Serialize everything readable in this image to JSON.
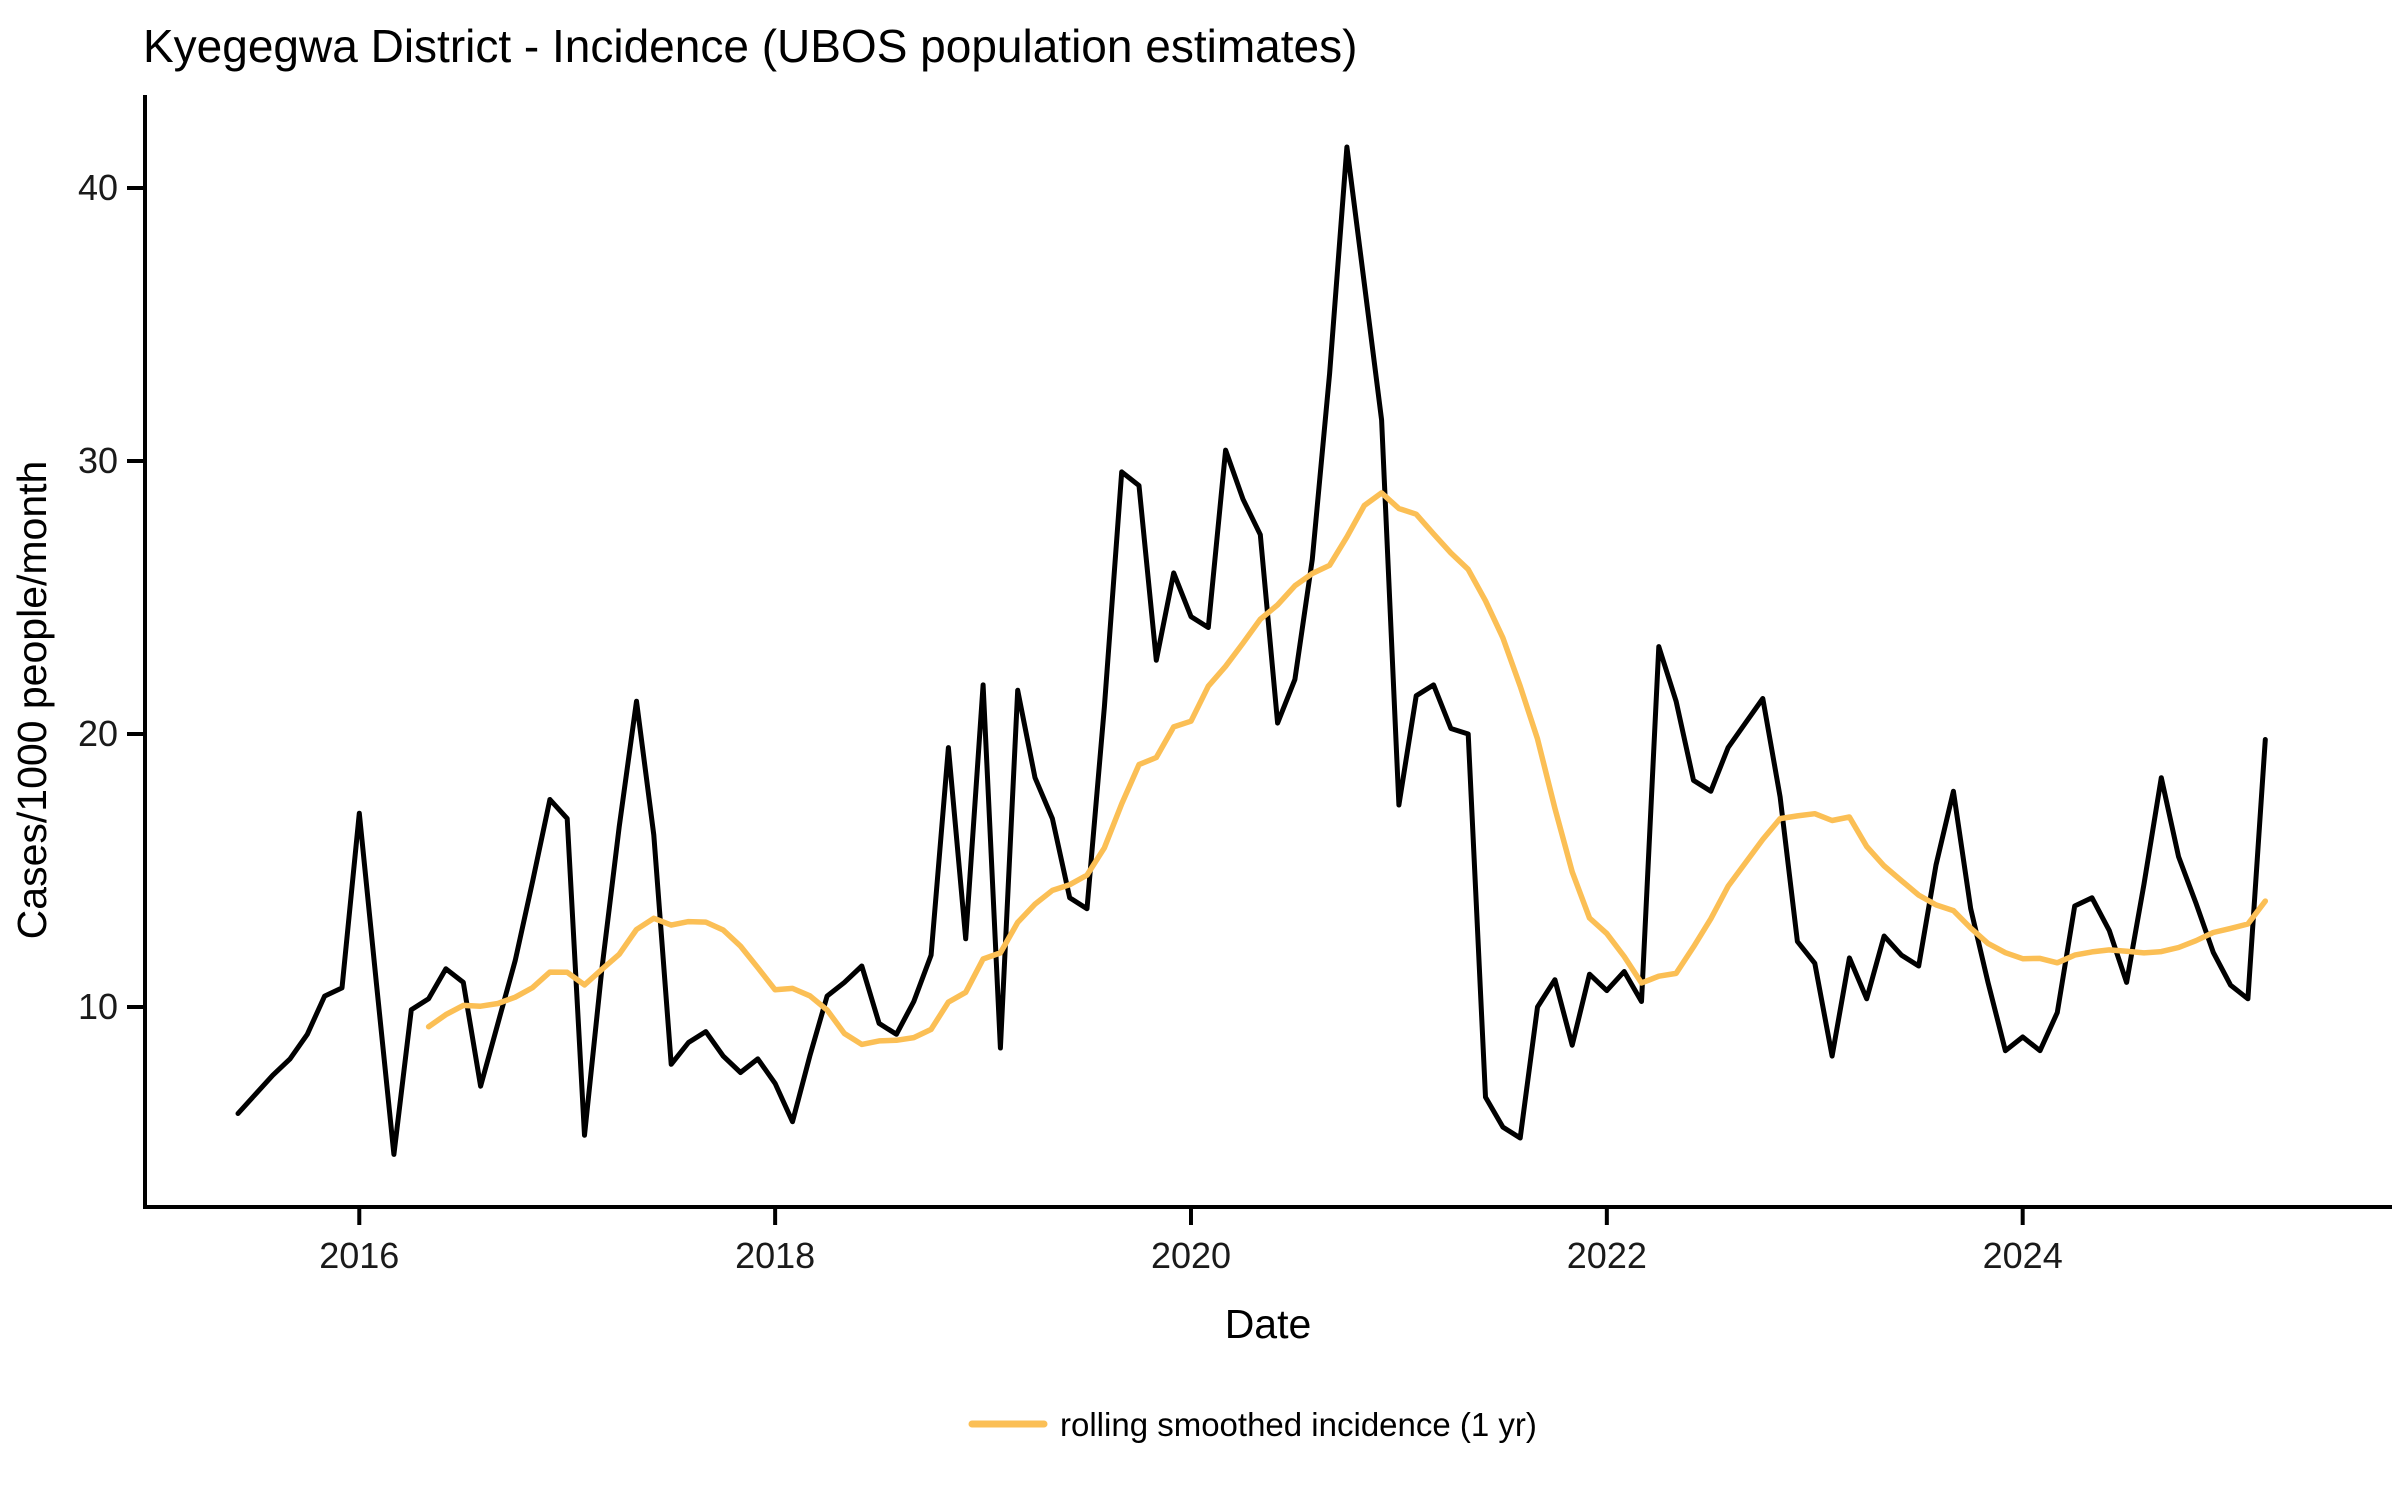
{
  "title": "Kyegegwa District - Incidence (UBOS population estimates)",
  "axes": {
    "x_label": "Date",
    "y_label": "Cases/1000 people/month",
    "x_tick_years": [
      2016,
      2018,
      2020,
      2022,
      2024
    ],
    "y_tick_values": [
      10,
      20,
      30,
      40
    ]
  },
  "legend": {
    "smoothed_label": "rolling smoothed incidence (1 yr)"
  },
  "colors": {
    "raw_line": "#000000",
    "smoothed_line": "#FBBF55",
    "axis": "#000000",
    "text": "#1a1a1a",
    "background": "#ffffff"
  },
  "chart_data": {
    "type": "line",
    "title": "Kyegegwa District - Incidence (UBOS population estimates)",
    "xlabel": "Date",
    "ylabel": "Cases/1000 people/month",
    "grid": false,
    "legend_position": "bottom-center",
    "x_start_month": "2015-06",
    "x_end_month": "2025-03",
    "frequency": "monthly",
    "x_axis_tick_years": [
      2016,
      2018,
      2020,
      2022,
      2024
    ],
    "ylim_drawn": [
      2.7,
      43.4
    ],
    "series": [
      {
        "name": "incidence",
        "style": "raw monthly line",
        "color": "#000000",
        "start_month": "2015-06",
        "values": [
          6.1,
          6.8,
          7.5,
          8.1,
          9.0,
          10.4,
          10.7,
          17.1,
          10.8,
          4.6,
          9.9,
          10.3,
          11.4,
          10.9,
          7.1,
          9.4,
          11.7,
          14.6,
          17.6,
          16.9,
          5.3,
          11.4,
          16.6,
          21.2,
          16.3,
          7.9,
          8.7,
          9.1,
          8.2,
          7.6,
          8.1,
          7.2,
          5.8,
          8.2,
          10.4,
          10.9,
          11.5,
          9.4,
          9.0,
          10.2,
          11.9,
          19.5,
          12.5,
          21.8,
          8.5,
          21.6,
          18.4,
          16.9,
          14.0,
          13.6,
          21.0,
          29.6,
          29.1,
          22.7,
          25.9,
          24.3,
          23.9,
          30.4,
          28.6,
          27.3,
          20.4,
          22.0,
          26.4,
          33.2,
          41.5,
          36.5,
          31.5,
          17.4,
          21.4,
          21.8,
          20.2,
          20.0,
          6.7,
          5.6,
          5.2,
          10.0,
          11.0,
          8.6,
          11.2,
          10.6,
          11.3,
          10.2,
          23.2,
          21.2,
          18.3,
          17.9,
          19.5,
          20.4,
          21.3,
          17.7,
          12.4,
          11.6,
          8.2,
          11.8,
          10.3,
          12.6,
          11.9,
          11.5,
          15.2,
          17.9,
          13.6,
          10.9,
          8.4,
          8.9,
          8.4,
          9.8,
          13.7,
          14.0,
          12.8,
          10.9,
          14.5,
          18.4,
          15.5,
          13.8,
          12.0,
          10.8,
          10.3,
          19.8
        ]
      },
      {
        "name": "rolling smoothed incidence (1 yr)",
        "style": "trailing 12-month rolling mean",
        "color": "#FBBF55",
        "window_months": 12,
        "start_month": "2016-05",
        "values": [
          9.28,
          9.72,
          10.06,
          10.03,
          10.13,
          10.36,
          10.71,
          11.28,
          11.27,
          10.81,
          11.38,
          11.93,
          12.84,
          13.25,
          13.0,
          13.13,
          13.11,
          12.82,
          12.23,
          11.44,
          10.63,
          10.68,
          10.41,
          9.89,
          9.03,
          8.63,
          8.76,
          8.78,
          8.88,
          9.18,
          10.18,
          10.54,
          11.76,
          11.98,
          13.1,
          13.77,
          14.27,
          14.48,
          14.83,
          15.83,
          17.44,
          18.88,
          19.14,
          20.26,
          20.47,
          21.75,
          22.48,
          23.33,
          24.2,
          24.73,
          25.43,
          25.88,
          26.18,
          27.22,
          28.37,
          28.83,
          28.26,
          28.05,
          27.33,
          26.63,
          26.03,
          24.88,
          23.52,
          21.75,
          19.82,
          17.28,
          14.95,
          13.26,
          12.69,
          11.85,
          10.88,
          11.13,
          11.23,
          12.2,
          13.23,
          14.42,
          15.28,
          16.14,
          16.9,
          17.0,
          17.08,
          16.83,
          16.96,
          15.88,
          15.17,
          14.63,
          14.1,
          13.74,
          13.53,
          12.89,
          12.33,
          11.99,
          11.77,
          11.78,
          11.62,
          11.9,
          12.02,
          12.09,
          12.04,
          11.98,
          12.03,
          12.18,
          12.43,
          12.73,
          12.88,
          13.04,
          13.88
        ]
      }
    ]
  }
}
